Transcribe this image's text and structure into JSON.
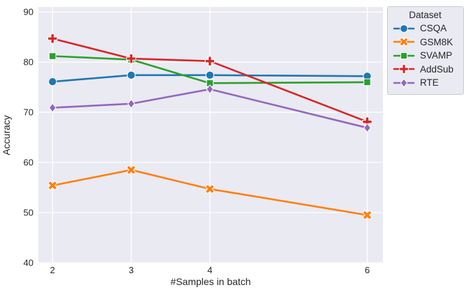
{
  "chart_data": {
    "type": "line",
    "title": "",
    "xlabel": "#Samples in batch",
    "ylabel": "Accuracy",
    "x": [
      2,
      3,
      4,
      6
    ],
    "xticklabels": [
      "2",
      "3",
      "4",
      "6"
    ],
    "yticks": [
      40,
      50,
      60,
      70,
      80,
      90
    ],
    "xlim": [
      1.82,
      6.2
    ],
    "ylim": [
      39.85,
      91.0
    ],
    "grid": true,
    "x_scale": "linear",
    "legend": {
      "title": "Dataset",
      "position": "outside-upper-right"
    },
    "series": [
      {
        "name": "CSQA",
        "color": "#1f77b4",
        "marker": "circle",
        "values": [
          76.1,
          77.4,
          77.4,
          77.2
        ]
      },
      {
        "name": "GSM8K",
        "color": "#ff7f0e",
        "marker": "x",
        "values": [
          55.4,
          58.5,
          54.7,
          49.5
        ]
      },
      {
        "name": "SVAMP",
        "color": "#2ca02c",
        "marker": "square",
        "values": [
          81.2,
          80.5,
          75.8,
          76.0
        ]
      },
      {
        "name": "AddSub",
        "color": "#d62728",
        "marker": "plus",
        "values": [
          84.7,
          80.7,
          80.2,
          68.1
        ]
      },
      {
        "name": "RTE",
        "color": "#9467bd",
        "marker": "diamond",
        "values": [
          70.9,
          71.7,
          74.6,
          66.9
        ]
      }
    ],
    "style": {
      "plot_bg": "#eaeaf2",
      "grid_color": "#ffffff",
      "text_color": "#262626",
      "line_width": 2.6
    }
  }
}
